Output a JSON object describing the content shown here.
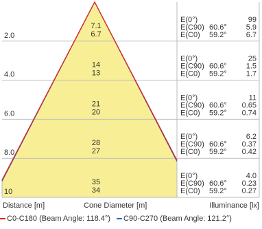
{
  "chart_data": {
    "type": "area",
    "title": "",
    "colors": {
      "fill": "#F8EE96",
      "c0": "#E2231A",
      "c90": "#1E6FC8",
      "grid": "#BBBBBB"
    },
    "rows": [
      {
        "distance": "2.0",
        "cone_c90": "7.1",
        "cone_c0": "6.7",
        "e0": "99",
        "ec90": "5.9",
        "ec0": "6.7"
      },
      {
        "distance": "4.0",
        "cone_c90": "14",
        "cone_c0": "13",
        "e0": "25",
        "ec90": "1.5",
        "ec0": "1.7"
      },
      {
        "distance": "6.0",
        "cone_c90": "21",
        "cone_c0": "20",
        "e0": "11",
        "ec90": "0.65",
        "ec0": "0.74"
      },
      {
        "distance": "8.0",
        "cone_c90": "28",
        "cone_c0": "27",
        "e0": "6.2",
        "ec90": "0.37",
        "ec0": "0.42"
      },
      {
        "distance": "10",
        "cone_c90": "35",
        "cone_c0": "34",
        "e0": "4.0",
        "ec90": "0.23",
        "ec0": "0.27"
      }
    ],
    "row_labels": {
      "e0": "E(0°)",
      "ec90": "E(C90)",
      "ec0": "E(C0)",
      "angle_c90": "60.6°",
      "angle_c0": "59.2°"
    },
    "footer": {
      "distance": "Distance [m]",
      "cone": "Cone Diameter [m]",
      "illuminance": "Illuminance [lx]"
    },
    "legend": [
      {
        "name": "C0-C180 (Beam Angle: 118.4°)",
        "color": "#E2231A"
      },
      {
        "name": "C90-C270 (Beam Angle: 121.2°)",
        "color": "#1E6FC8"
      }
    ]
  }
}
